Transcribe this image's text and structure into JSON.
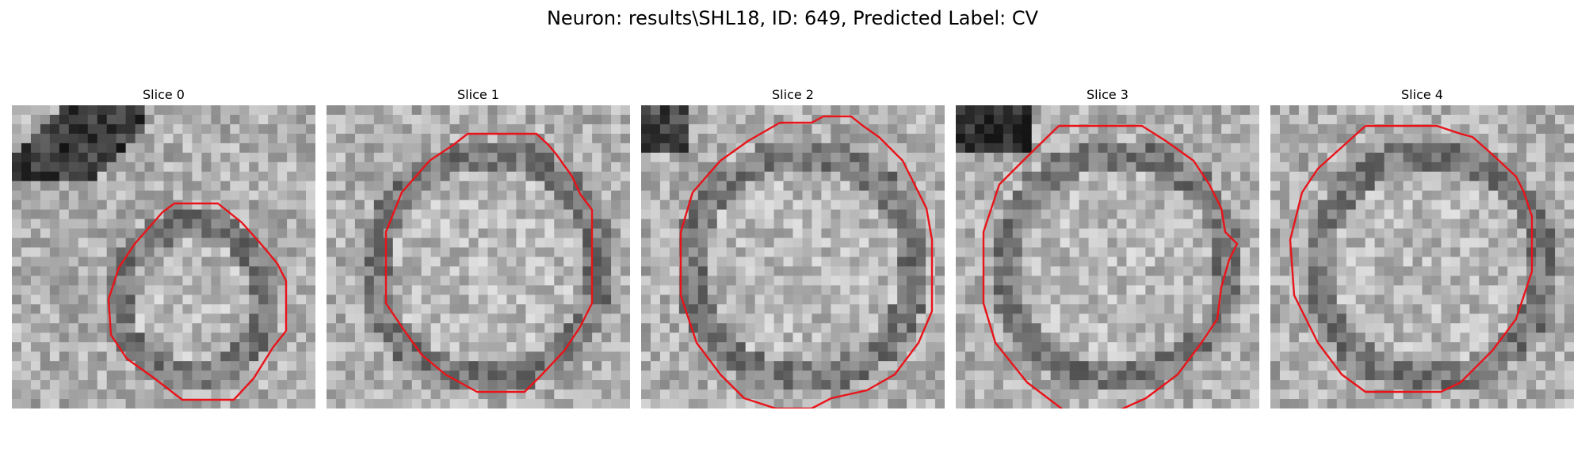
{
  "figure": {
    "title": "Neuron: results\\SHL18, ID: 649, Predicted Label: CV"
  },
  "slices": [
    {
      "title": "Slice 0",
      "pattern_seed": 11
    },
    {
      "title": "Slice 1",
      "pattern_seed": 23
    },
    {
      "title": "Slice 2",
      "pattern_seed": 37
    },
    {
      "title": "Slice 3",
      "pattern_seed": 41
    },
    {
      "title": "Slice 4",
      "pattern_seed": 53
    }
  ],
  "colors": {
    "contour": "#e8141a",
    "background": "#ffffff"
  }
}
